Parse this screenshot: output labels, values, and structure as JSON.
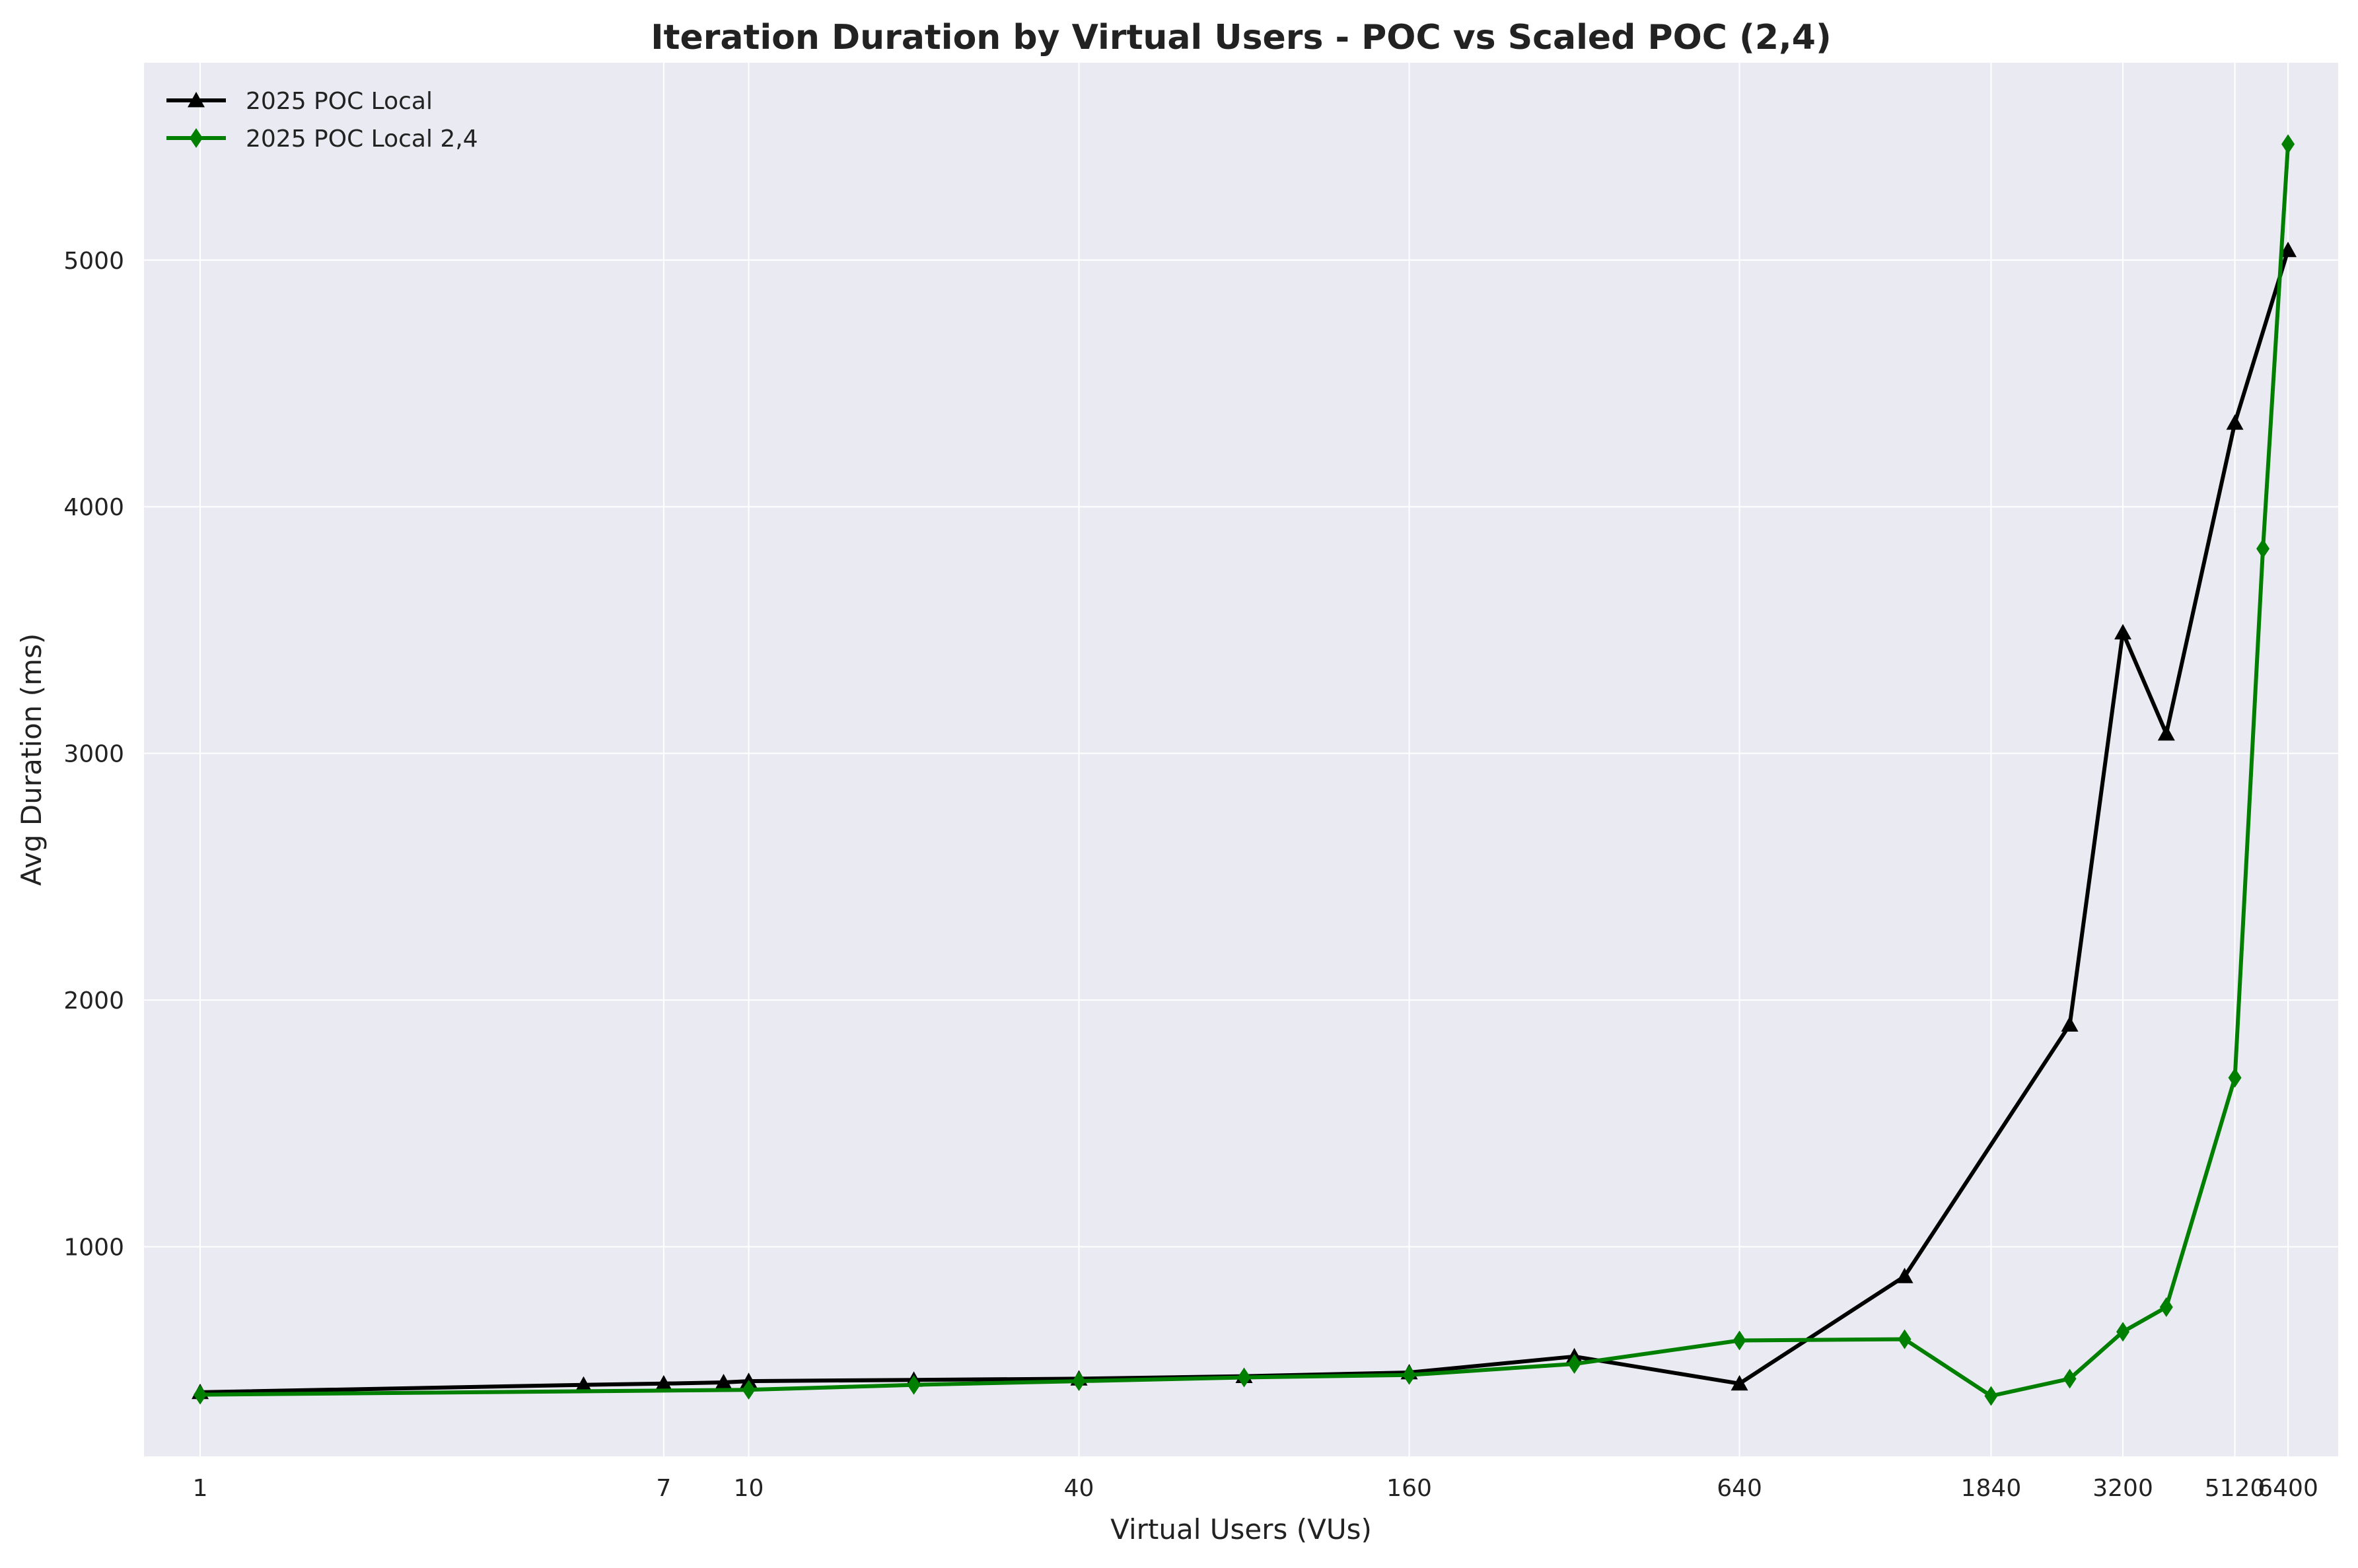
{
  "chart_data": {
    "type": "line",
    "title": "Iteration Duration by Virtual Users - POC vs Scaled POC (2,4)",
    "xlabel": "Virtual Users (VUs)",
    "ylabel": "Avg Duration (ms)",
    "x_scale": "log",
    "x_ticks": [
      {
        "value": 1,
        "label": "1"
      },
      {
        "value": 7,
        "label": "7"
      },
      {
        "value": 10,
        "label": "10"
      },
      {
        "value": 40,
        "label": "40"
      },
      {
        "value": 160,
        "label": "160"
      },
      {
        "value": 640,
        "label": "640"
      },
      {
        "value": 1840,
        "label": "1840"
      },
      {
        "value": 3200,
        "label": "3200"
      },
      {
        "value": 5120,
        "label": "5120"
      },
      {
        "value": 6400,
        "label": "6400"
      }
    ],
    "y_ticks": [
      1000,
      2000,
      3000,
      4000,
      5000
    ],
    "xlim": [
      0.79,
      7900
    ],
    "ylim": [
      150,
      5800
    ],
    "grid": true,
    "legend_position": "top-left",
    "series": [
      {
        "name": "2025 POC Local",
        "color": "#000000",
        "marker": "triangle",
        "points": [
          {
            "x": 1,
            "y": 410
          },
          {
            "x": 5,
            "y": 440
          },
          {
            "x": 7,
            "y": 445
          },
          {
            "x": 9,
            "y": 450
          },
          {
            "x": 10,
            "y": 455
          },
          {
            "x": 20,
            "y": 460
          },
          {
            "x": 40,
            "y": 465
          },
          {
            "x": 80,
            "y": 475
          },
          {
            "x": 160,
            "y": 490
          },
          {
            "x": 320,
            "y": 555
          },
          {
            "x": 640,
            "y": 445
          },
          {
            "x": 1280,
            "y": 880
          },
          {
            "x": 2560,
            "y": 1900
          },
          {
            "x": 3200,
            "y": 3490
          },
          {
            "x": 3840,
            "y": 3080
          },
          {
            "x": 5120,
            "y": 4340
          },
          {
            "x": 6400,
            "y": 5040
          }
        ]
      },
      {
        "name": "2025 POC Local 2,4",
        "color": "#007f00",
        "marker": "diamond",
        "points": [
          {
            "x": 1,
            "y": 400
          },
          {
            "x": 10,
            "y": 420
          },
          {
            "x": 20,
            "y": 440
          },
          {
            "x": 40,
            "y": 455
          },
          {
            "x": 80,
            "y": 470
          },
          {
            "x": 160,
            "y": 480
          },
          {
            "x": 320,
            "y": 525
          },
          {
            "x": 640,
            "y": 620
          },
          {
            "x": 1280,
            "y": 625
          },
          {
            "x": 1840,
            "y": 395
          },
          {
            "x": 2560,
            "y": 465
          },
          {
            "x": 3200,
            "y": 655
          },
          {
            "x": 3840,
            "y": 755
          },
          {
            "x": 5120,
            "y": 1685
          },
          {
            "x": 5760,
            "y": 3830
          },
          {
            "x": 6400,
            "y": 5470
          }
        ]
      }
    ]
  }
}
